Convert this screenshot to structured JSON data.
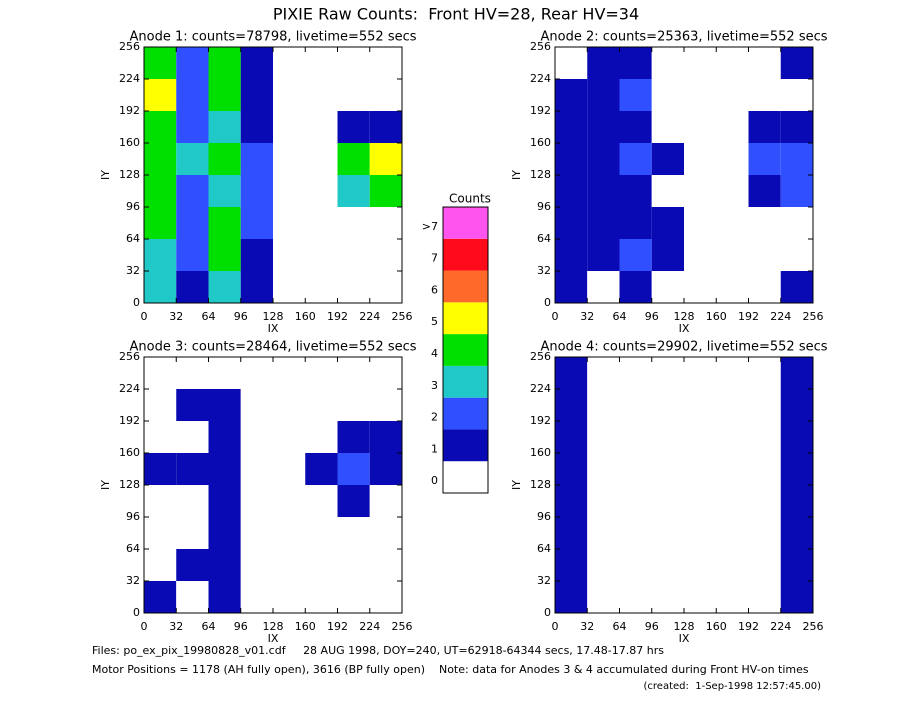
{
  "title": "PIXIE Raw Counts:  Front HV=28, Rear HV=34",
  "colorbar": {
    "title": "Counts",
    "levels": [
      0,
      1,
      2,
      3,
      4,
      5,
      6,
      7,
      {
        "value": 8,
        "label": ">7"
      }
    ],
    "colors": [
      "#ffffff",
      "#0a0ab4",
      "#3050ff",
      "#20c8c8",
      "#00e000",
      "#ffff00",
      "#ff6a2a",
      "#ff0a1a",
      "#ff55ee"
    ]
  },
  "chart_data": [
    {
      "type": "heatmap",
      "title": "Anode 1: counts=78798, livetime=552 secs",
      "xlabel": "IX",
      "ylabel": "IY",
      "xlim": [
        0,
        256
      ],
      "ylim": [
        0,
        256
      ],
      "xticks": [
        0,
        32,
        64,
        96,
        128,
        160,
        192,
        224,
        256
      ],
      "yticks": [
        0,
        32,
        64,
        96,
        128,
        160,
        192,
        224,
        256
      ],
      "z": [
        [
          3,
          1,
          3,
          1,
          0,
          0,
          0,
          0
        ],
        [
          3,
          2,
          4,
          1,
          0,
          0,
          0,
          0
        ],
        [
          4,
          2,
          4,
          2,
          0,
          0,
          0,
          0
        ],
        [
          4,
          2,
          3,
          2,
          0,
          0,
          3,
          4
        ],
        [
          4,
          3,
          4,
          2,
          0,
          0,
          4,
          5
        ],
        [
          4,
          2,
          3,
          1,
          0,
          0,
          1,
          1
        ],
        [
          5,
          2,
          4,
          1,
          0,
          0,
          0,
          0
        ],
        [
          4,
          2,
          4,
          1,
          0,
          0,
          0,
          0
        ]
      ]
    },
    {
      "type": "heatmap",
      "title": "Anode 2: counts=25363, livetime=552 secs",
      "xlabel": "IX",
      "ylabel": "IY",
      "xlim": [
        0,
        256
      ],
      "ylim": [
        0,
        256
      ],
      "xticks": [
        0,
        32,
        64,
        96,
        128,
        160,
        192,
        224,
        256
      ],
      "yticks": [
        0,
        32,
        64,
        96,
        128,
        160,
        192,
        224,
        256
      ],
      "z": [
        [
          1,
          0,
          1,
          0,
          0,
          0,
          0,
          1
        ],
        [
          1,
          1,
          2,
          1,
          0,
          0,
          0,
          0
        ],
        [
          1,
          1,
          1,
          1,
          0,
          0,
          0,
          0
        ],
        [
          1,
          1,
          1,
          0,
          0,
          0,
          1,
          2
        ],
        [
          1,
          1,
          2,
          1,
          0,
          0,
          2,
          2
        ],
        [
          1,
          1,
          1,
          0,
          0,
          0,
          1,
          1
        ],
        [
          1,
          1,
          2,
          0,
          0,
          0,
          0,
          0
        ],
        [
          0,
          1,
          1,
          0,
          0,
          0,
          0,
          1
        ]
      ]
    },
    {
      "type": "heatmap",
      "title": "Anode 3: counts=28464, livetime=552 secs",
      "xlabel": "IX",
      "ylabel": "IY",
      "xlim": [
        0,
        256
      ],
      "ylim": [
        0,
        256
      ],
      "xticks": [
        0,
        32,
        64,
        96,
        128,
        160,
        192,
        224,
        256
      ],
      "yticks": [
        0,
        32,
        64,
        96,
        128,
        160,
        192,
        224,
        256
      ],
      "z": [
        [
          1,
          0,
          1,
          0,
          0,
          0,
          0,
          0
        ],
        [
          0,
          1,
          1,
          0,
          0,
          0,
          0,
          0
        ],
        [
          0,
          0,
          1,
          0,
          0,
          0,
          0,
          0
        ],
        [
          0,
          0,
          1,
          0,
          0,
          0,
          1,
          0
        ],
        [
          1,
          1,
          1,
          0,
          0,
          1,
          2,
          1
        ],
        [
          0,
          0,
          1,
          0,
          0,
          0,
          1,
          1
        ],
        [
          0,
          1,
          1,
          0,
          0,
          0,
          0,
          0
        ],
        [
          0,
          0,
          0,
          0,
          0,
          0,
          0,
          0
        ]
      ]
    },
    {
      "type": "heatmap",
      "title": "Anode 4: counts=29902, livetime=552 secs",
      "xlabel": "IX",
      "ylabel": "IY",
      "xlim": [
        0,
        256
      ],
      "ylim": [
        0,
        256
      ],
      "xticks": [
        0,
        32,
        64,
        96,
        128,
        160,
        192,
        224,
        256
      ],
      "yticks": [
        0,
        32,
        64,
        96,
        128,
        160,
        192,
        224,
        256
      ],
      "z": [
        [
          1,
          0,
          0,
          0,
          0,
          0,
          0,
          1
        ],
        [
          1,
          0,
          0,
          0,
          0,
          0,
          0,
          1
        ],
        [
          1,
          0,
          0,
          0,
          0,
          0,
          0,
          1
        ],
        [
          1,
          0,
          0,
          0,
          0,
          0,
          0,
          1
        ],
        [
          1,
          0,
          0,
          0,
          0,
          0,
          0,
          1
        ],
        [
          1,
          0,
          0,
          0,
          0,
          0,
          0,
          1
        ],
        [
          1,
          0,
          0,
          0,
          0,
          0,
          0,
          1
        ],
        [
          1,
          0,
          0,
          0,
          0,
          0,
          0,
          1
        ]
      ]
    }
  ],
  "footer": {
    "files": "Files: po_ex_pix_19980828_v01.cdf     28 AUG 1998, DOY=240, UT=62918-64344 secs, 17.48-17.87 hrs",
    "motor": "Motor Positions = 1178 (AH fully open), 3616 (BP fully open)    Note: data for Anodes 3 & 4 accumulated during Front HV-on times",
    "created": "(created:  1-Sep-1998 12:57:45.00)"
  }
}
